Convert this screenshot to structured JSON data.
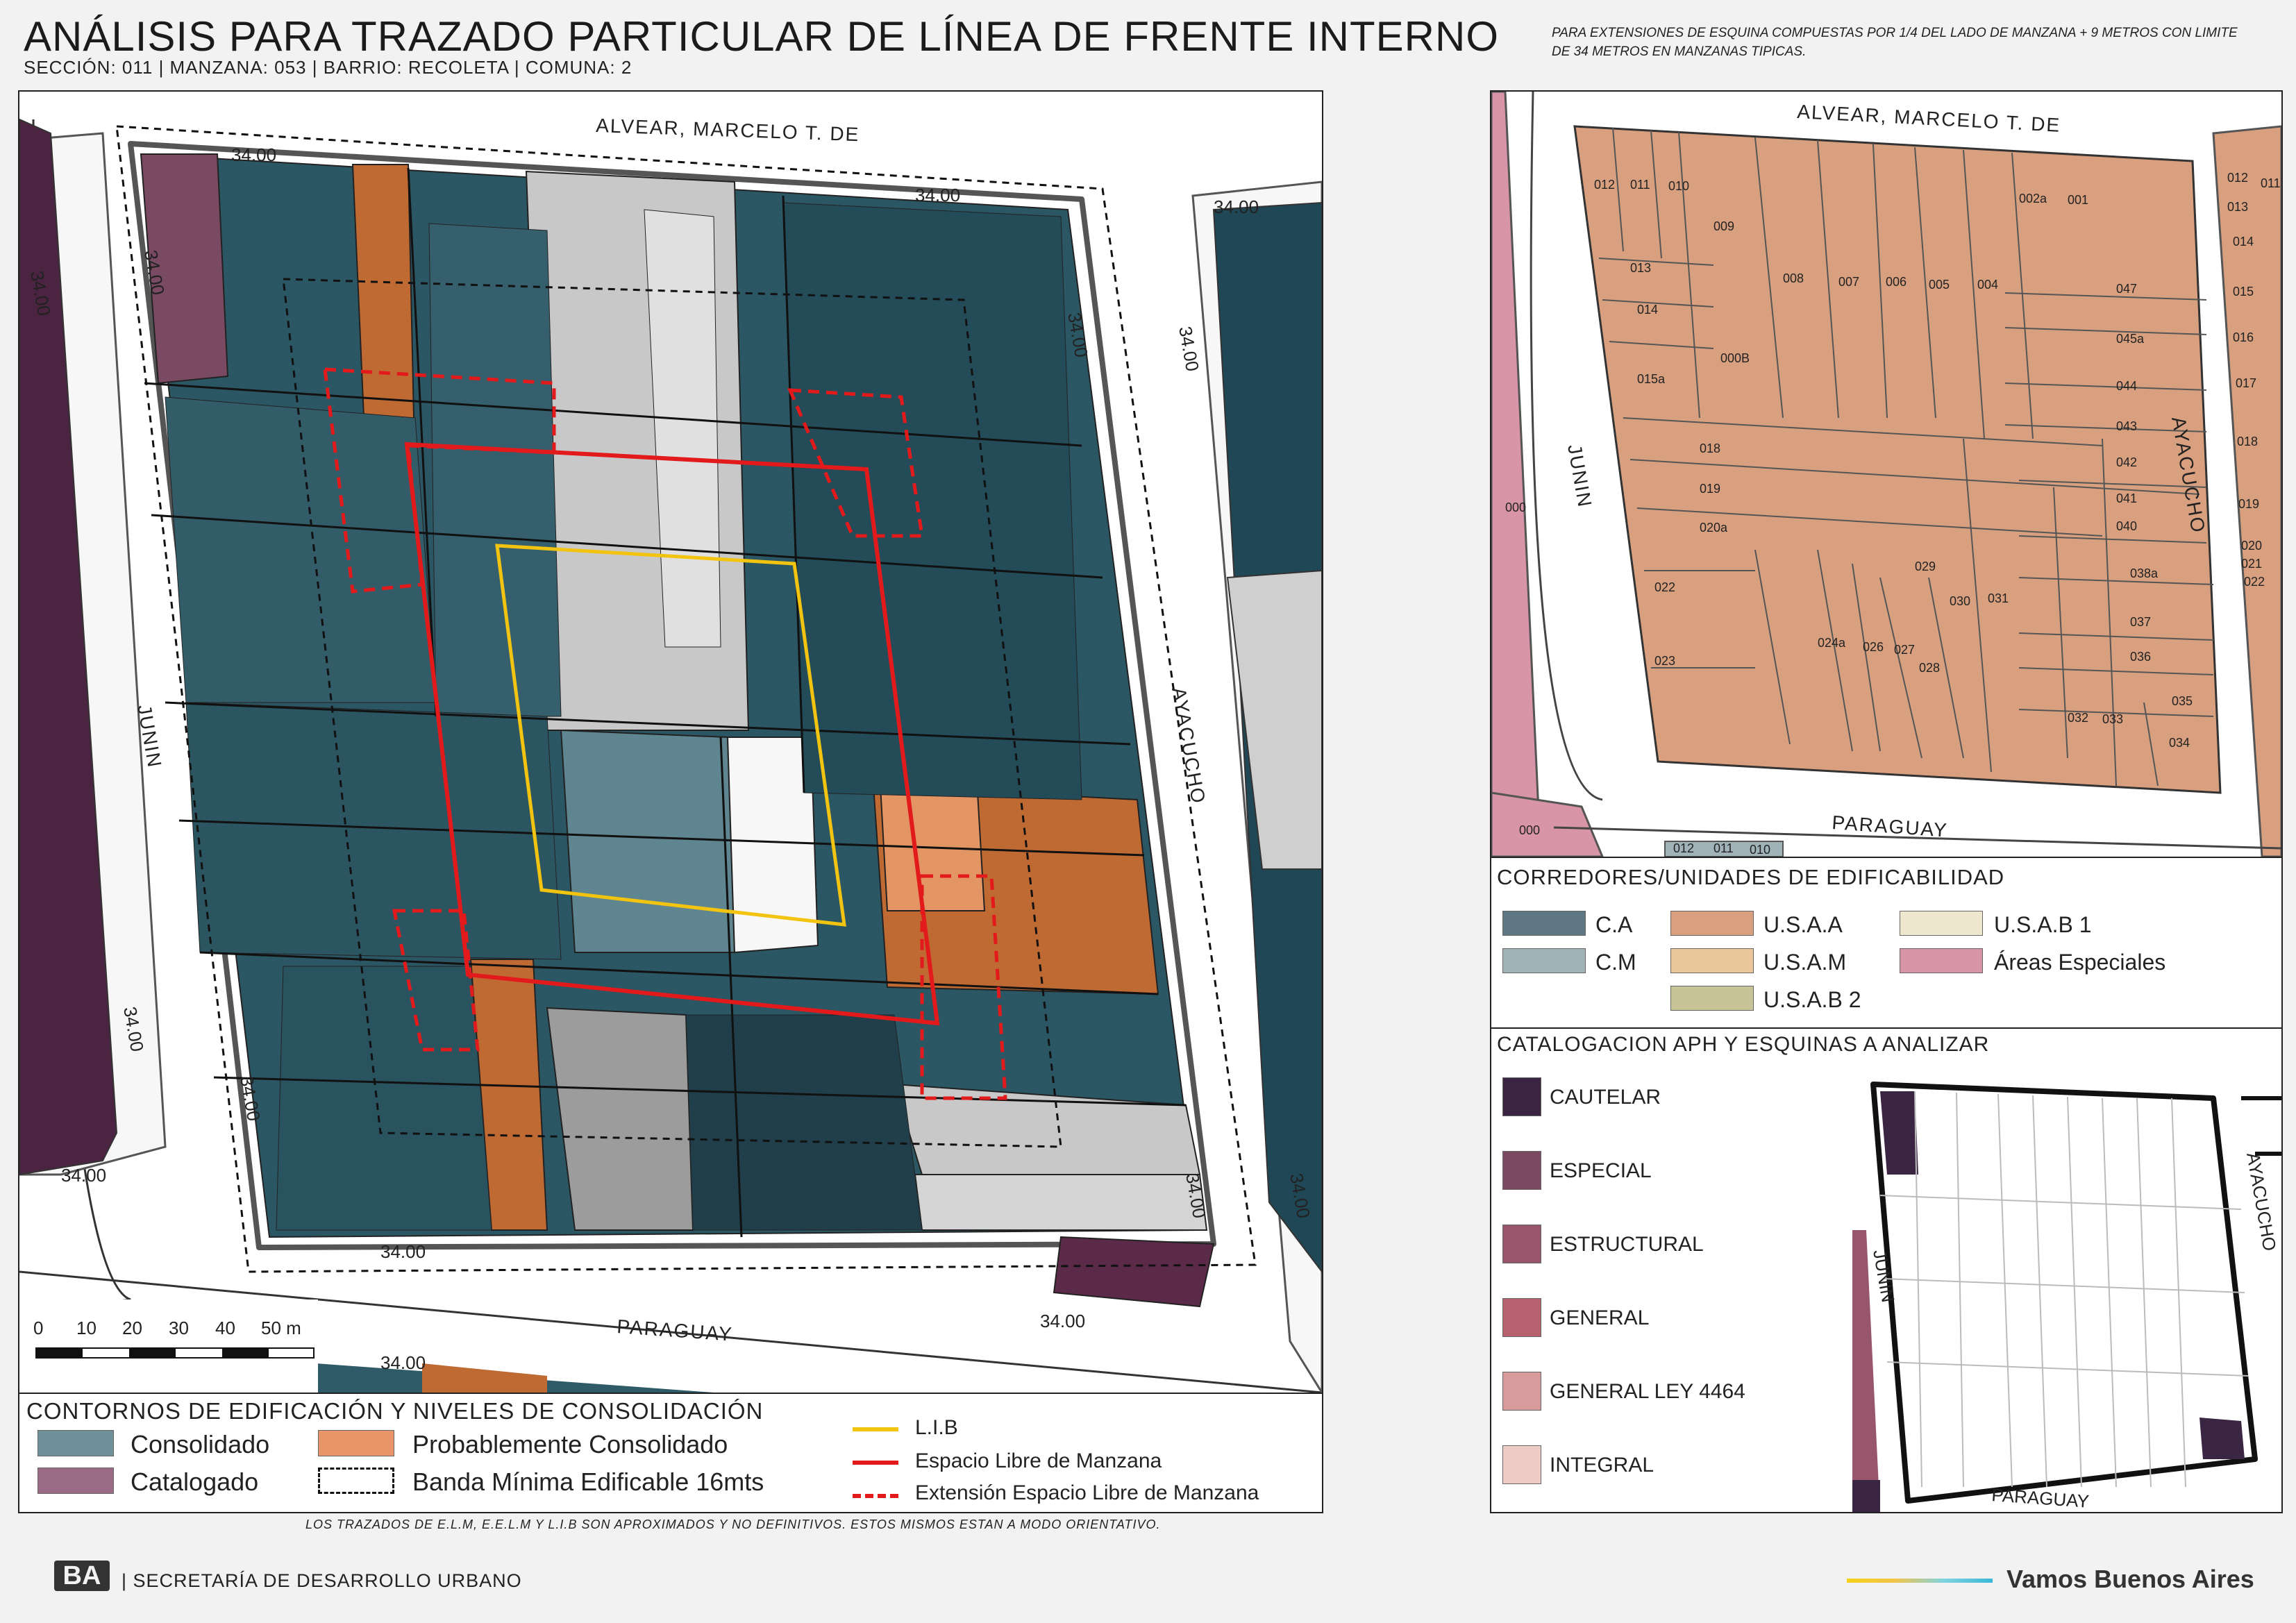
{
  "header": {
    "title": "ANÁLISIS PARA TRAZADO PARTICULAR DE LÍNEA DE FRENTE INTERNO",
    "subtitle": "SECCIÓN: 011 |  MANZANA: 053 | BARRIO: RECOLETA | COMUNA: 2",
    "note": "PARA EXTENSIONES DE ESQUINA COMPUESTAS POR 1/4 DEL LADO DE MANZANA + 9 METROS CON LIMITE DE 34 METROS EN MANZANAS TIPICAS."
  },
  "main_map": {
    "streets": {
      "north": "ALVEAR, MARCELO T. DE",
      "east": "AYACUCHO",
      "south": "PARAGUAY",
      "west": "JUNIN"
    },
    "dimension_label": "34.00",
    "scale": {
      "ticks": [
        "0",
        "10",
        "20",
        "30",
        "40",
        "50 m"
      ]
    }
  },
  "legend_main": {
    "title": "CONTORNOS DE EDIFICACIÓN Y NIVELES DE CONSOLIDACIÓN",
    "items": [
      {
        "label": "Consolidado",
        "color": "#6f8f99"
      },
      {
        "label": "Probablemente Consolidado",
        "color": "#e8956a"
      },
      {
        "label": "Catalogado",
        "color": "#9a6b86"
      },
      {
        "label": "Banda Mínima Edificable 16mts",
        "style": "dashed"
      }
    ],
    "lines": [
      {
        "label": "L.I.B",
        "color": "#f2c40f",
        "style": "solid"
      },
      {
        "label": "Espacio Libre de Manzana",
        "color": "#e31a1c",
        "style": "solid"
      },
      {
        "label": "Extensión Espacio Libre de Manzana",
        "color": "#e31a1c",
        "style": "dashed"
      }
    ]
  },
  "parcel_map": {
    "streets": {
      "north": "ALVEAR, MARCELO T. DE",
      "east": "AYACUCHO",
      "south": "PARAGUAY",
      "west": "JUNIN"
    },
    "parcels": [
      "012",
      "011",
      "010",
      "009",
      "002a",
      "001",
      "013",
      "008",
      "007",
      "006",
      "005",
      "004",
      "047",
      "014",
      "000B",
      "045a",
      "015a",
      "044",
      "043",
      "018",
      "042",
      "019",
      "041",
      "020a",
      "040",
      "029",
      "030",
      "031",
      "038a",
      "022",
      "024a",
      "026",
      "027",
      "037",
      "023",
      "028",
      "036",
      "035",
      "032",
      "033",
      "034"
    ],
    "neighbor_east": [
      "012",
      "011",
      "013",
      "014",
      "015",
      "016",
      "017",
      "018",
      "019",
      "020",
      "021",
      "022"
    ],
    "neighbor_west": "000",
    "neighbor_sw": "000",
    "neighbor_south": [
      "012",
      "011",
      "010"
    ]
  },
  "legend_corredores": {
    "title": "CORREDORES/UNIDADES DE EDIFICABILIDAD",
    "items": [
      {
        "label": "C.A",
        "color": "#5f7782"
      },
      {
        "label": "U.S.A.A",
        "color": "#d9a07f"
      },
      {
        "label": "U.S.A.B 1",
        "color": "#efe8cf"
      },
      {
        "label": "C.M",
        "color": "#9fb3b8"
      },
      {
        "label": "U.S.A.M",
        "color": "#ebc89b"
      },
      {
        "label": "Áreas Especiales",
        "color": "#d895a8"
      },
      {
        "label": "U.S.A.B 2",
        "color": "#c9c497"
      }
    ]
  },
  "legend_catalogacion": {
    "title": "CATALOGACION APH Y ESQUINAS A ANALIZAR",
    "items": [
      {
        "label": "CAUTELAR",
        "color": "#3a2542"
      },
      {
        "label": "ESPECIAL",
        "color": "#7a4a63"
      },
      {
        "label": "ESTRUCTURAL",
        "color": "#97566b"
      },
      {
        "label": "GENERAL",
        "color": "#b86170"
      },
      {
        "label": "GENERAL LEY 4464",
        "color": "#d79a9d"
      },
      {
        "label": "INTEGRAL",
        "color": "#ecccc4"
      }
    ],
    "mini_map_streets": {
      "west": "JUNIN",
      "east": "AYACUCHO",
      "south": "PARAGUAY"
    }
  },
  "footer": {
    "disclaimer": "LOS TRAZADOS DE E.L.M, E.E.L.M Y L.I.B SON APROXIMADOS Y NO DEFINITIVOS. ESTOS MISMOS ESTAN A MODO ORIENTATIVO.",
    "logo": "BA",
    "org": "| SECRETARÍA DE DESARROLLO URBANO",
    "brand": "Vamos Buenos Aires"
  }
}
